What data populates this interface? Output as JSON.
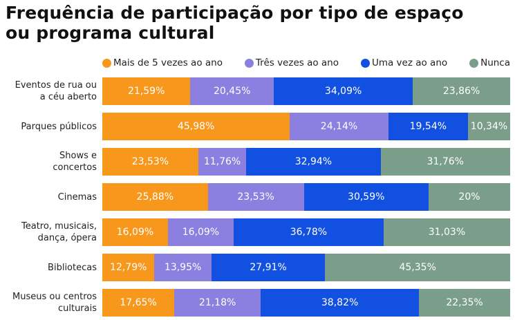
{
  "chart_data": {
    "type": "bar",
    "orientation": "horizontal",
    "stacked": true,
    "title": "Frequência de participação por tipo de espaço ou programa cultural",
    "legend_position": "top",
    "xlim": [
      0,
      100
    ],
    "categories": [
      "Eventos de rua ou a céu aberto",
      "Parques públicos",
      "Shows e concertos",
      "Cinemas",
      "Teatro, musicais, dança, ópera",
      "Bibliotecas",
      "Museus ou centros culturais"
    ],
    "series": [
      {
        "name": "Mais de 5 vezes ao ano",
        "color": "#F7981D",
        "values": [
          21.59,
          45.98,
          23.53,
          25.88,
          16.09,
          12.79,
          17.65
        ],
        "labels": [
          "21,59%",
          "45,98%",
          "23,53%",
          "25,88%",
          "16,09%",
          "12,79%",
          "17,65%"
        ]
      },
      {
        "name": "Três vezes ao ano",
        "color": "#8B7FE0",
        "values": [
          20.45,
          24.14,
          11.76,
          23.53,
          16.09,
          13.95,
          21.18
        ],
        "labels": [
          "20,45%",
          "24,14%",
          "11,76%",
          "23,53%",
          "16,09%",
          "13,95%",
          "21,18%"
        ]
      },
      {
        "name": "Uma vez ao ano",
        "color": "#1150E0",
        "values": [
          34.09,
          19.54,
          32.94,
          30.59,
          36.78,
          27.91,
          38.82
        ],
        "labels": [
          "34,09%",
          "19,54%",
          "32,94%",
          "30,59%",
          "36,78%",
          "27,91%",
          "38,82%"
        ]
      },
      {
        "name": "Nunca",
        "color": "#7A9E8A",
        "values": [
          23.86,
          10.34,
          31.76,
          20,
          31.03,
          45.35,
          22.35
        ],
        "labels": [
          "23,86%",
          "10,34%",
          "31,76%",
          "20%",
          "31,03%",
          "45,35%",
          "22,35%"
        ]
      }
    ]
  }
}
